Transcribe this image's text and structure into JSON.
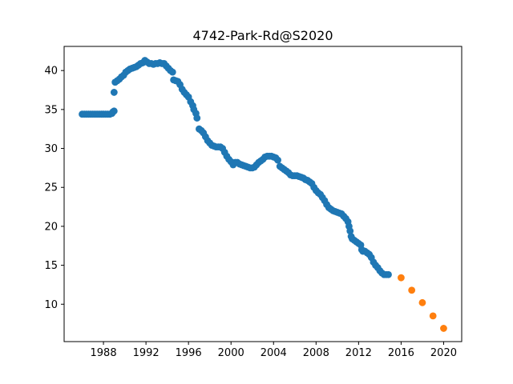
{
  "chart_data": {
    "type": "scatter",
    "title": "4742-Park-Rd@S2020",
    "xlabel": "",
    "ylabel": "",
    "xlim": [
      1984.3,
      2021.7
    ],
    "ylim": [
      5.2,
      43.1
    ],
    "x_ticks": [
      1988,
      1992,
      1996,
      2000,
      2004,
      2008,
      2012,
      2016,
      2020
    ],
    "y_ticks": [
      10,
      15,
      20,
      25,
      30,
      35,
      40
    ],
    "grid": false,
    "colors": {
      "observed": "#1f77b4",
      "projected": "#ff7f0e"
    },
    "series": [
      {
        "points": [
          [
            1986.0,
            34.4
          ],
          [
            1986.2,
            34.4
          ],
          [
            1986.4,
            34.4
          ],
          [
            1986.6,
            34.4
          ],
          [
            1986.8,
            34.4
          ],
          [
            1987.0,
            34.4
          ],
          [
            1987.2,
            34.4
          ],
          [
            1987.4,
            34.4
          ],
          [
            1987.6,
            34.4
          ],
          [
            1987.8,
            34.4
          ],
          [
            1988.0,
            34.4
          ],
          [
            1988.2,
            34.4
          ],
          [
            1988.4,
            34.4
          ],
          [
            1988.6,
            34.4
          ],
          [
            1988.8,
            34.5
          ],
          [
            1988.9,
            34.7
          ],
          [
            1989.0,
            34.8
          ],
          [
            1989.0,
            37.2
          ],
          [
            1989.1,
            38.5
          ],
          [
            1989.3,
            38.7
          ],
          [
            1989.5,
            38.9
          ],
          [
            1989.7,
            39.2
          ],
          [
            1989.9,
            39.4
          ],
          [
            1990.1,
            39.8
          ],
          [
            1990.3,
            40.0
          ],
          [
            1990.5,
            40.2
          ],
          [
            1990.7,
            40.3
          ],
          [
            1990.9,
            40.4
          ],
          [
            1991.1,
            40.5
          ],
          [
            1991.3,
            40.7
          ],
          [
            1991.5,
            40.9
          ],
          [
            1991.7,
            41.0
          ],
          [
            1991.9,
            41.3
          ],
          [
            1992.1,
            41.1
          ],
          [
            1992.3,
            40.9
          ],
          [
            1992.5,
            40.9
          ],
          [
            1992.7,
            40.8
          ],
          [
            1992.9,
            40.9
          ],
          [
            1993.1,
            40.9
          ],
          [
            1993.3,
            41.0
          ],
          [
            1993.5,
            40.9
          ],
          [
            1993.7,
            40.9
          ],
          [
            1993.9,
            40.6
          ],
          [
            1994.1,
            40.3
          ],
          [
            1994.3,
            40.0
          ],
          [
            1994.5,
            39.8
          ],
          [
            1994.6,
            38.8
          ],
          [
            1994.8,
            38.7
          ],
          [
            1995.0,
            38.6
          ],
          [
            1995.2,
            38.2
          ],
          [
            1995.4,
            37.6
          ],
          [
            1995.6,
            37.2
          ],
          [
            1995.8,
            36.9
          ],
          [
            1996.0,
            36.6
          ],
          [
            1996.2,
            36.0
          ],
          [
            1996.4,
            35.5
          ],
          [
            1996.5,
            35.0
          ],
          [
            1996.7,
            34.5
          ],
          [
            1996.8,
            33.9
          ],
          [
            1997.0,
            32.5
          ],
          [
            1997.2,
            32.3
          ],
          [
            1997.4,
            32.0
          ],
          [
            1997.6,
            31.5
          ],
          [
            1997.8,
            31.0
          ],
          [
            1998.0,
            30.7
          ],
          [
            1998.2,
            30.4
          ],
          [
            1998.4,
            30.3
          ],
          [
            1998.6,
            30.2
          ],
          [
            1998.8,
            30.2
          ],
          [
            1999.0,
            30.2
          ],
          [
            1999.2,
            30.0
          ],
          [
            1999.4,
            29.5
          ],
          [
            1999.6,
            29.0
          ],
          [
            1999.8,
            28.6
          ],
          [
            2000.0,
            28.3
          ],
          [
            2000.2,
            27.9
          ],
          [
            2000.4,
            28.2
          ],
          [
            2000.6,
            28.2
          ],
          [
            2000.8,
            28.0
          ],
          [
            2001.0,
            27.9
          ],
          [
            2001.2,
            27.8
          ],
          [
            2001.4,
            27.7
          ],
          [
            2001.6,
            27.6
          ],
          [
            2001.8,
            27.5
          ],
          [
            2002.0,
            27.5
          ],
          [
            2002.2,
            27.6
          ],
          [
            2002.4,
            27.9
          ],
          [
            2002.6,
            28.2
          ],
          [
            2002.8,
            28.4
          ],
          [
            2003.0,
            28.6
          ],
          [
            2003.2,
            28.9
          ],
          [
            2003.4,
            29.0
          ],
          [
            2003.6,
            29.0
          ],
          [
            2003.8,
            29.0
          ],
          [
            2004.0,
            28.9
          ],
          [
            2004.2,
            28.8
          ],
          [
            2004.4,
            28.5
          ],
          [
            2004.6,
            27.7
          ],
          [
            2004.8,
            27.5
          ],
          [
            2005.0,
            27.3
          ],
          [
            2005.2,
            27.1
          ],
          [
            2005.4,
            26.9
          ],
          [
            2005.6,
            26.6
          ],
          [
            2005.8,
            26.5
          ],
          [
            2006.0,
            26.5
          ],
          [
            2006.2,
            26.5
          ],
          [
            2006.4,
            26.4
          ],
          [
            2006.6,
            26.3
          ],
          [
            2006.8,
            26.2
          ],
          [
            2007.0,
            26.0
          ],
          [
            2007.2,
            25.9
          ],
          [
            2007.4,
            25.7
          ],
          [
            2007.6,
            25.5
          ],
          [
            2007.8,
            25.0
          ],
          [
            2008.0,
            24.6
          ],
          [
            2008.2,
            24.3
          ],
          [
            2008.4,
            24.1
          ],
          [
            2008.6,
            23.7
          ],
          [
            2008.8,
            23.3
          ],
          [
            2009.0,
            22.8
          ],
          [
            2009.2,
            22.4
          ],
          [
            2009.4,
            22.2
          ],
          [
            2009.6,
            22.0
          ],
          [
            2009.8,
            21.9
          ],
          [
            2010.0,
            21.8
          ],
          [
            2010.2,
            21.7
          ],
          [
            2010.4,
            21.6
          ],
          [
            2010.6,
            21.3
          ],
          [
            2010.8,
            21.0
          ],
          [
            2011.0,
            20.6
          ],
          [
            2011.1,
            20.0
          ],
          [
            2011.2,
            19.4
          ],
          [
            2011.3,
            18.7
          ],
          [
            2011.4,
            18.4
          ],
          [
            2011.6,
            18.2
          ],
          [
            2011.8,
            18.0
          ],
          [
            2012.0,
            17.8
          ],
          [
            2012.2,
            17.6
          ],
          [
            2012.3,
            17.0
          ],
          [
            2012.4,
            16.8
          ],
          [
            2012.6,
            16.8
          ],
          [
            2012.8,
            16.6
          ],
          [
            2013.0,
            16.4
          ],
          [
            2013.2,
            16.0
          ],
          [
            2013.4,
            15.4
          ],
          [
            2013.6,
            15.0
          ],
          [
            2013.8,
            14.7
          ],
          [
            2014.0,
            14.3
          ],
          [
            2014.2,
            14.0
          ],
          [
            2014.4,
            13.8
          ],
          [
            2014.6,
            13.8
          ],
          [
            2014.8,
            13.8
          ]
        ]
      },
      {
        "points": [
          [
            2016.0,
            13.4
          ],
          [
            2017.0,
            11.8
          ],
          [
            2018.0,
            10.2
          ],
          [
            2019.0,
            8.5
          ],
          [
            2020.0,
            6.9
          ]
        ]
      }
    ]
  }
}
